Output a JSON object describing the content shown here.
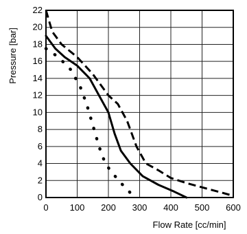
{
  "chart_data": {
    "type": "line",
    "title": "",
    "xlabel": "Flow Rate [cc/min]",
    "ylabel": "Pressure [bar]",
    "xlim": [
      0,
      600
    ],
    "ylim": [
      0,
      22
    ],
    "x_ticks": [
      0,
      100,
      200,
      300,
      400,
      500,
      600
    ],
    "y_ticks": [
      0,
      2,
      4,
      6,
      8,
      10,
      12,
      14,
      16,
      18,
      20,
      22
    ],
    "grid": true,
    "legend": "none",
    "series": [
      {
        "style": "dashed",
        "points": [
          [
            0,
            22
          ],
          [
            20,
            19.5
          ],
          [
            50,
            18
          ],
          [
            100,
            16.5
          ],
          [
            150,
            14.5
          ],
          [
            200,
            12
          ],
          [
            230,
            11
          ],
          [
            260,
            9
          ],
          [
            290,
            6
          ],
          [
            320,
            4
          ],
          [
            360,
            3.2
          ],
          [
            400,
            2.3
          ],
          [
            450,
            1.7
          ],
          [
            500,
            1.2
          ],
          [
            550,
            0.7
          ],
          [
            600,
            0.2
          ]
        ]
      },
      {
        "style": "solid",
        "points": [
          [
            0,
            19
          ],
          [
            30,
            17.5
          ],
          [
            60,
            16.5
          ],
          [
            100,
            15.5
          ],
          [
            140,
            14
          ],
          [
            170,
            12
          ],
          [
            200,
            10
          ],
          [
            220,
            7.5
          ],
          [
            240,
            5.5
          ],
          [
            270,
            4
          ],
          [
            310,
            2.5
          ],
          [
            360,
            1.5
          ],
          [
            410,
            0.7
          ],
          [
            450,
            0
          ]
        ]
      },
      {
        "style": "dotted",
        "points": [
          [
            0,
            17.5
          ],
          [
            40,
            16.5
          ],
          [
            80,
            15
          ],
          [
            110,
            13
          ],
          [
            130,
            11
          ],
          [
            150,
            8.5
          ],
          [
            170,
            6
          ],
          [
            190,
            4
          ],
          [
            210,
            3
          ],
          [
            240,
            1.7
          ],
          [
            265,
            0.8
          ],
          [
            280,
            0
          ]
        ]
      }
    ]
  }
}
